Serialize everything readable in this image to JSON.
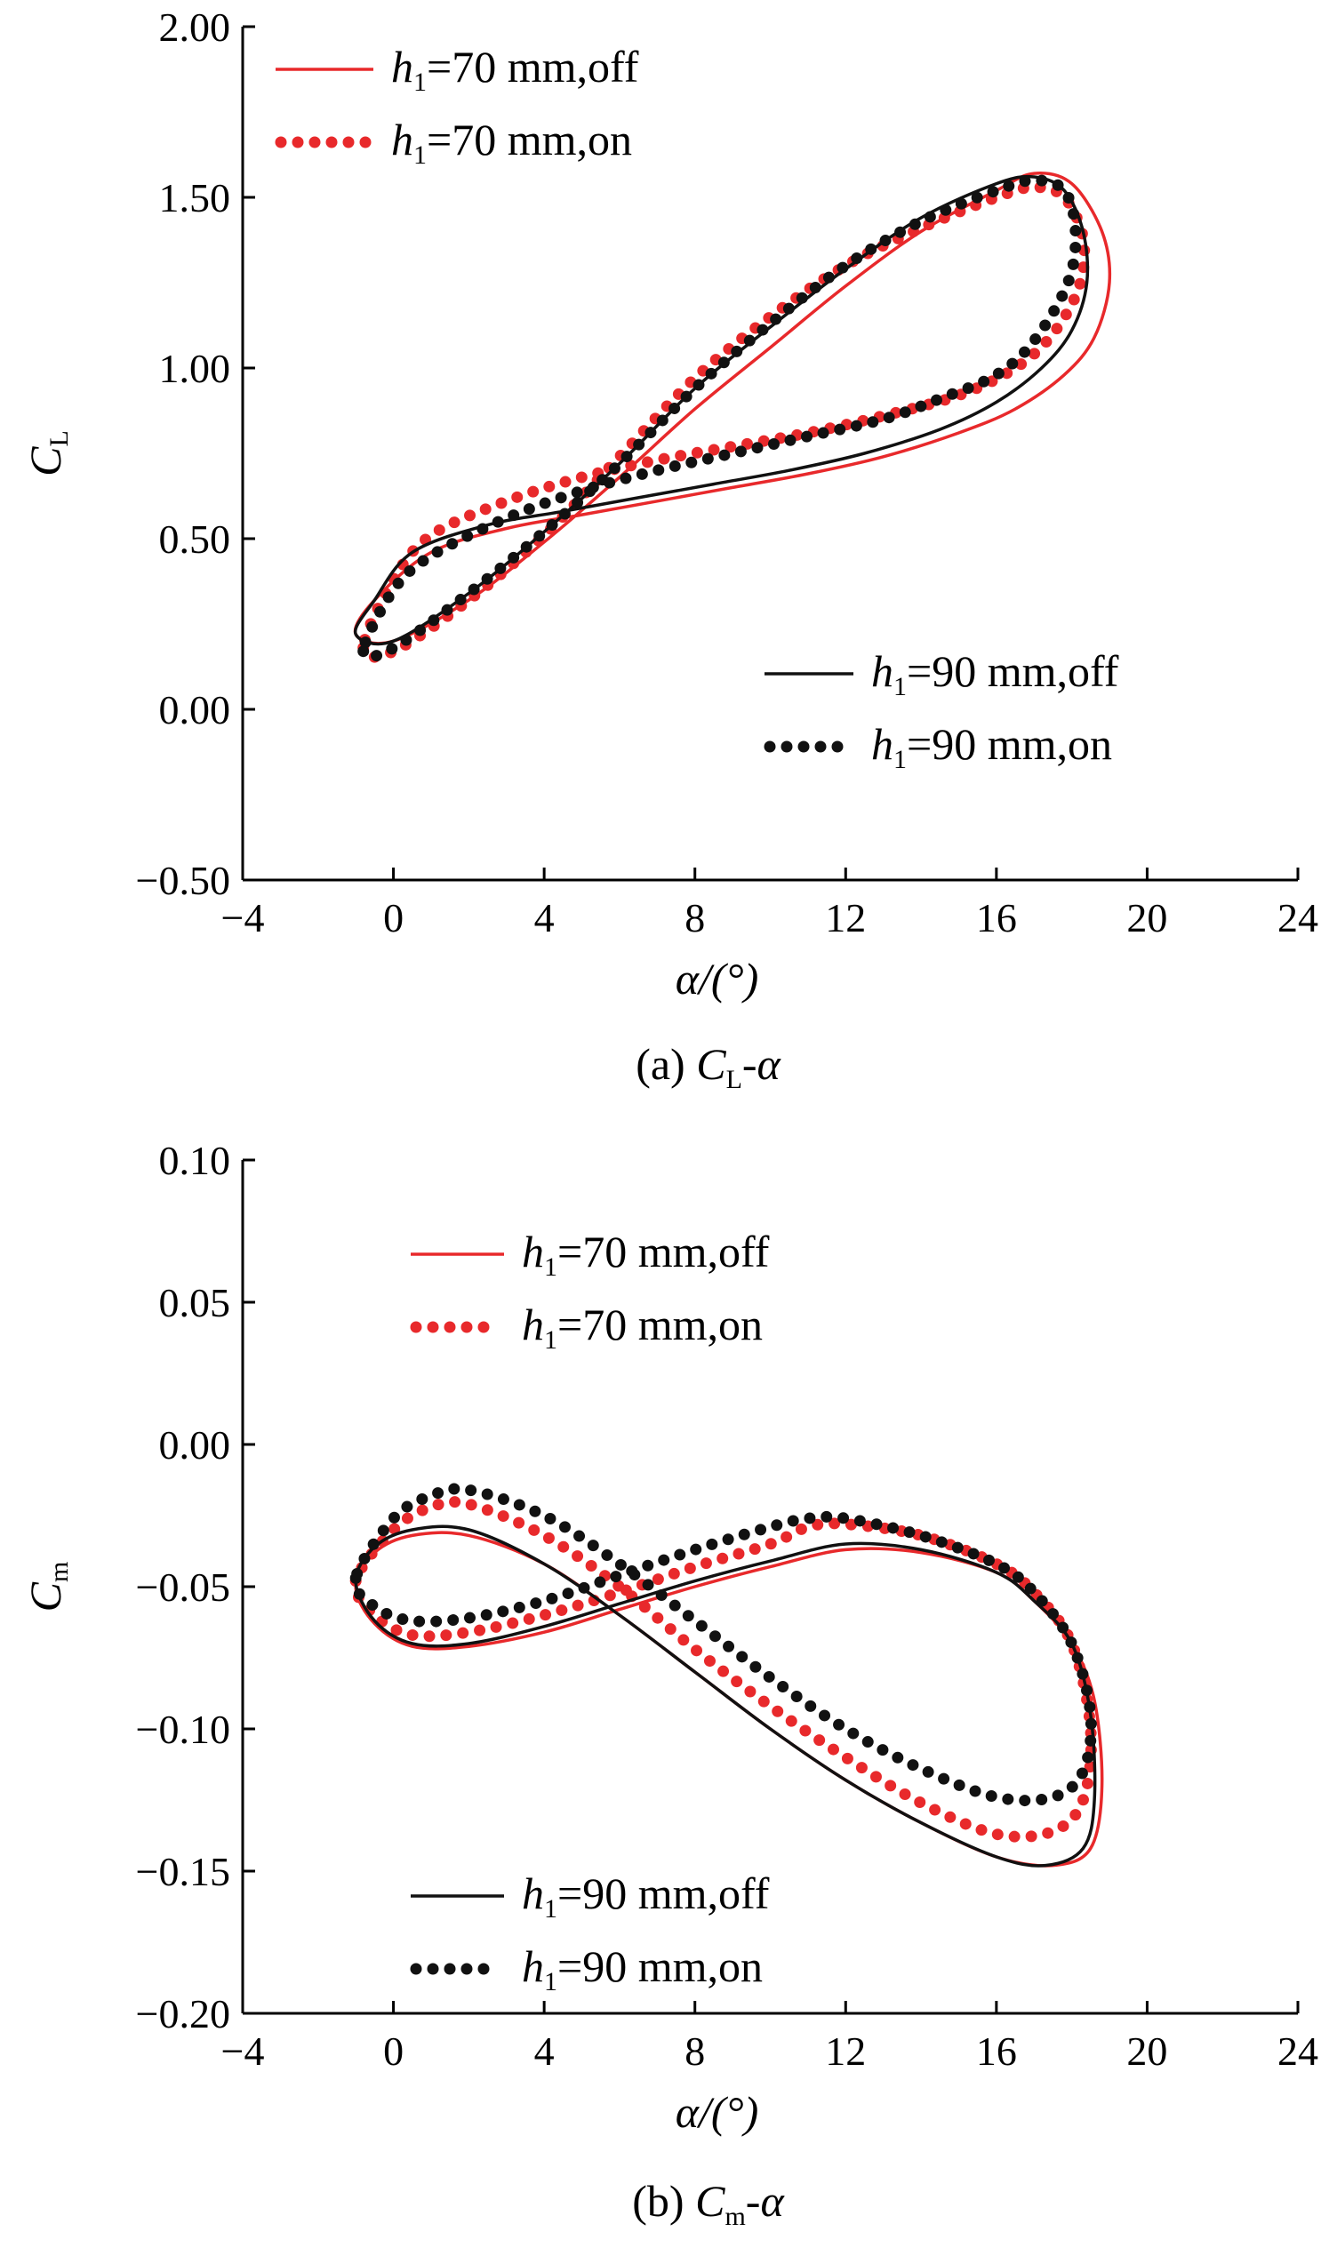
{
  "colors": {
    "red": "#e8292b",
    "black": "#111111"
  },
  "chart_data": [
    {
      "type": "line",
      "caption": {
        "prefix": "(a) ",
        "main": "C",
        "sub": "L",
        "suffix": "-α"
      },
      "xlabel": "α/(°)",
      "ylabel": {
        "main": "C",
        "sub": "L"
      },
      "xlim": [
        -4,
        24
      ],
      "ylim": [
        -0.5,
        2.0
      ],
      "xticks": [
        "−4",
        "0",
        "4",
        "8",
        "12",
        "16",
        "20",
        "24"
      ],
      "yticks": [
        "−0.50",
        "0.00",
        "0.50",
        "1.00",
        "1.50",
        "2.00"
      ],
      "legend_position": [
        "top-left",
        "bottom-right"
      ],
      "series": [
        {
          "name": {
            "pre": "h",
            "sub": "1",
            "post": "=70 mm,off"
          },
          "style": "solid",
          "color": "red",
          "x": [
            -1.0,
            0.0,
            2.0,
            4.0,
            6.0,
            8.0,
            10.0,
            12.0,
            14.0,
            16.0,
            17.0,
            18.0,
            18.8,
            19.0,
            18.6,
            17.8,
            16.5,
            15.0,
            13.0,
            11.0,
            9.0,
            7.0,
            5.0,
            3.0,
            1.0,
            -0.5,
            -1.0
          ],
          "y": [
            0.22,
            0.2,
            0.32,
            0.49,
            0.68,
            0.88,
            1.06,
            1.24,
            1.4,
            1.52,
            1.57,
            1.54,
            1.4,
            1.25,
            1.09,
            0.98,
            0.88,
            0.81,
            0.74,
            0.69,
            0.65,
            0.61,
            0.57,
            0.53,
            0.46,
            0.32,
            0.22
          ]
        },
        {
          "name": {
            "pre": "h",
            "sub": "1",
            "post": "=70 mm,on"
          },
          "style": "dotted",
          "color": "red",
          "x": [
            -0.8,
            0.0,
            2.0,
            4.0,
            6.0,
            8.0,
            10.0,
            12.0,
            14.0,
            16.0,
            17.0,
            17.8,
            18.3,
            18.2,
            17.5,
            16.5,
            15.0,
            13.0,
            11.0,
            9.0,
            7.0,
            5.0,
            3.0,
            1.0,
            0.0,
            -0.8
          ],
          "y": [
            0.18,
            0.17,
            0.32,
            0.51,
            0.74,
            0.97,
            1.15,
            1.3,
            1.41,
            1.5,
            1.53,
            1.5,
            1.38,
            1.24,
            1.1,
            1.0,
            0.92,
            0.86,
            0.81,
            0.77,
            0.73,
            0.68,
            0.61,
            0.51,
            0.38,
            0.18
          ]
        },
        {
          "name": {
            "pre": "h",
            "sub": "1",
            "post": "=90 mm,off"
          },
          "style": "solid",
          "color": "black",
          "x": [
            -1.0,
            0.0,
            2.0,
            4.0,
            6.0,
            8.0,
            10.0,
            12.0,
            14.0,
            16.0,
            17.0,
            17.8,
            18.3,
            18.4,
            18.0,
            17.2,
            16.0,
            14.5,
            12.5,
            10.5,
            8.5,
            6.5,
            4.5,
            2.5,
            0.5,
            -0.5,
            -1.0
          ],
          "y": [
            0.22,
            0.2,
            0.34,
            0.52,
            0.72,
            0.94,
            1.12,
            1.29,
            1.44,
            1.54,
            1.56,
            1.52,
            1.4,
            1.25,
            1.11,
            1.0,
            0.9,
            0.82,
            0.75,
            0.7,
            0.66,
            0.62,
            0.58,
            0.54,
            0.46,
            0.32,
            0.22
          ]
        },
        {
          "name": {
            "pre": "h",
            "sub": "1",
            "post": "=90 mm,on"
          },
          "style": "dotted",
          "color": "black",
          "x": [
            -0.8,
            0.0,
            2.0,
            4.0,
            6.0,
            8.0,
            10.0,
            12.0,
            14.0,
            16.0,
            17.0,
            17.8,
            18.1,
            17.9,
            17.0,
            16.0,
            14.5,
            13.0,
            11.0,
            9.0,
            7.0,
            5.0,
            3.0,
            1.0,
            0.0,
            -0.8
          ],
          "y": [
            0.17,
            0.18,
            0.34,
            0.52,
            0.72,
            0.94,
            1.13,
            1.3,
            1.43,
            1.52,
            1.55,
            1.52,
            1.4,
            1.25,
            1.08,
            0.98,
            0.91,
            0.85,
            0.8,
            0.75,
            0.7,
            0.64,
            0.56,
            0.45,
            0.35,
            0.17
          ]
        }
      ]
    },
    {
      "type": "line",
      "caption": {
        "prefix": "(b) ",
        "main": "C",
        "sub": "m",
        "suffix": "-α"
      },
      "xlabel": "α/(°)",
      "ylabel": {
        "main": "C",
        "sub": "m"
      },
      "xlim": [
        -4,
        24
      ],
      "ylim": [
        -0.2,
        0.1
      ],
      "xticks": [
        "−4",
        "0",
        "4",
        "8",
        "12",
        "16",
        "20",
        "24"
      ],
      "yticks": [
        "−0.20",
        "−0.15",
        "−0.10",
        "−0.05",
        "0.00",
        "0.05",
        "0.10"
      ],
      "legend_position": [
        "top-center",
        "bottom-left"
      ],
      "series": [
        {
          "name": {
            "pre": "h",
            "sub": "1",
            "post": "=70 mm,off"
          },
          "style": "solid",
          "color": "red",
          "x": [
            -1.0,
            -0.5,
            0.5,
            2.0,
            4.0,
            6.0,
            8.0,
            10.0,
            12.0,
            14.0,
            16.0,
            17.0,
            18.0,
            18.6,
            18.8,
            18.5,
            17.5,
            16.0,
            14.0,
            12.0,
            10.0,
            8.0,
            6.0,
            4.0,
            2.0,
            0.5,
            -0.5,
            -1.0
          ],
          "y": [
            -0.05,
            -0.063,
            -0.071,
            -0.071,
            -0.066,
            -0.058,
            -0.05,
            -0.043,
            -0.037,
            -0.038,
            -0.045,
            -0.055,
            -0.07,
            -0.09,
            -0.12,
            -0.142,
            -0.148,
            -0.145,
            -0.133,
            -0.118,
            -0.1,
            -0.08,
            -0.06,
            -0.042,
            -0.032,
            -0.032,
            -0.038,
            -0.05
          ]
        },
        {
          "name": {
            "pre": "h",
            "sub": "1",
            "post": "=70 mm,on"
          },
          "style": "dotted",
          "color": "red",
          "x": [
            -1.0,
            -0.5,
            0.5,
            2.0,
            4.0,
            6.0,
            8.0,
            10.0,
            11.0,
            12.0,
            14.0,
            16.0,
            17.0,
            18.0,
            18.5,
            18.3,
            17.5,
            16.0,
            14.0,
            12.0,
            10.0,
            8.0,
            6.0,
            4.0,
            2.0,
            1.0,
            0.0,
            -1.0
          ],
          "y": [
            -0.048,
            -0.06,
            -0.067,
            -0.066,
            -0.06,
            -0.052,
            -0.043,
            -0.035,
            -0.029,
            -0.028,
            -0.032,
            -0.042,
            -0.052,
            -0.07,
            -0.1,
            -0.125,
            -0.136,
            -0.137,
            -0.126,
            -0.11,
            -0.092,
            -0.072,
            -0.05,
            -0.032,
            -0.021,
            -0.022,
            -0.03,
            -0.048
          ]
        },
        {
          "name": {
            "pre": "h",
            "sub": "1",
            "post": "=90 mm,off"
          },
          "style": "solid",
          "color": "black",
          "x": [
            -1.0,
            -0.5,
            0.5,
            2.0,
            4.0,
            6.0,
            8.0,
            10.0,
            12.0,
            14.0,
            16.0,
            17.0,
            18.0,
            18.5,
            18.6,
            18.3,
            17.3,
            16.0,
            14.0,
            12.0,
            10.0,
            8.0,
            6.0,
            4.0,
            2.0,
            0.5,
            -0.5,
            -1.0
          ],
          "y": [
            -0.048,
            -0.062,
            -0.07,
            -0.07,
            -0.064,
            -0.056,
            -0.048,
            -0.041,
            -0.035,
            -0.037,
            -0.045,
            -0.055,
            -0.07,
            -0.095,
            -0.125,
            -0.142,
            -0.148,
            -0.145,
            -0.133,
            -0.118,
            -0.1,
            -0.08,
            -0.06,
            -0.042,
            -0.03,
            -0.03,
            -0.036,
            -0.048
          ]
        },
        {
          "name": {
            "pre": "h",
            "sub": "1",
            "post": "=90 mm,on"
          },
          "style": "dotted",
          "color": "black",
          "x": [
            -1.0,
            -0.5,
            0.5,
            2.0,
            4.0,
            6.0,
            8.0,
            10.0,
            11.0,
            12.0,
            14.0,
            16.0,
            17.0,
            18.0,
            18.5,
            18.3,
            17.5,
            16.0,
            14.0,
            12.0,
            10.0,
            8.0,
            6.0,
            4.0,
            2.0,
            1.0,
            0.0,
            -1.0
          ],
          "y": [
            -0.047,
            -0.057,
            -0.062,
            -0.061,
            -0.055,
            -0.046,
            -0.037,
            -0.029,
            -0.026,
            -0.026,
            -0.032,
            -0.042,
            -0.052,
            -0.07,
            -0.095,
            -0.115,
            -0.124,
            -0.124,
            -0.114,
            -0.1,
            -0.082,
            -0.062,
            -0.042,
            -0.025,
            -0.016,
            -0.018,
            -0.026,
            -0.047
          ]
        }
      ]
    }
  ]
}
